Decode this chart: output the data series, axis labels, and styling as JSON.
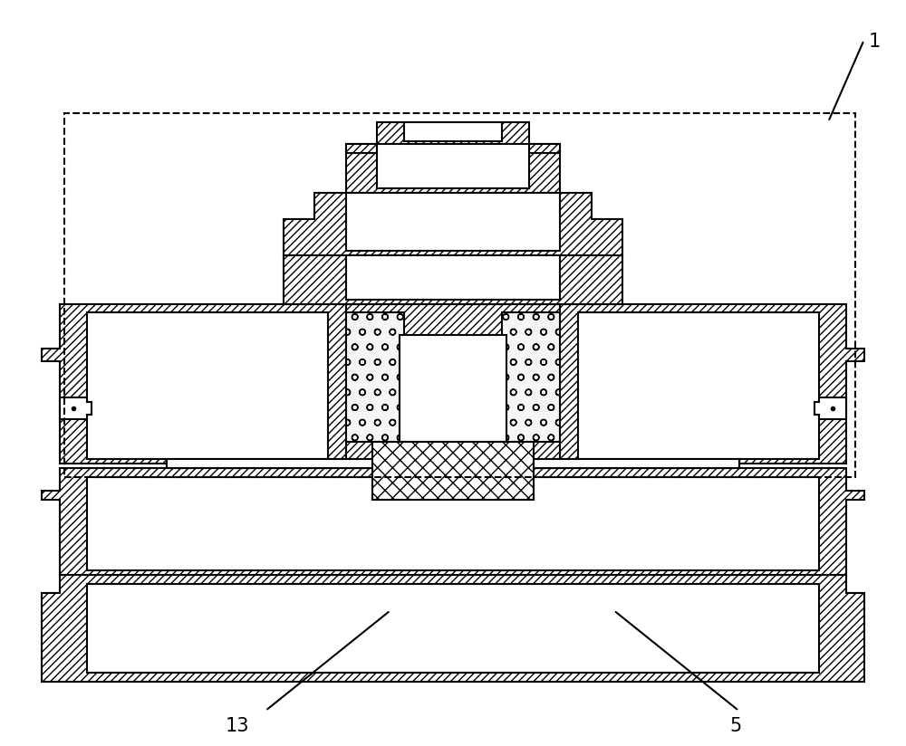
{
  "fig_width": 10.0,
  "fig_height": 8.24,
  "dpi": 100,
  "bg_color": "#ffffff",
  "line_color": "#000000",
  "label_1": "1",
  "label_5": "5",
  "label_13": "13"
}
